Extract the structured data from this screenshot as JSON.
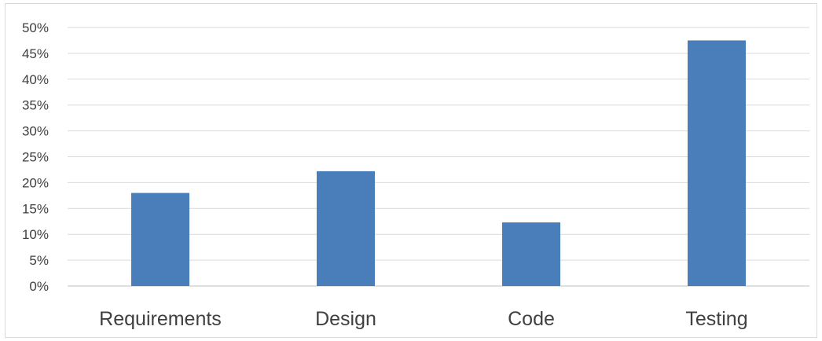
{
  "chart_data": {
    "type": "bar",
    "categories": [
      "Requirements",
      "Design",
      "Code",
      "Testing"
    ],
    "values": [
      18,
      22.2,
      12.3,
      47.5
    ],
    "value_format": "percent",
    "y_ticks": [
      "0%",
      "5%",
      "10%",
      "15%",
      "20%",
      "25%",
      "30%",
      "35%",
      "40%",
      "45%",
      "50%"
    ],
    "ylim": [
      0,
      50
    ],
    "grid": true,
    "legend": "none",
    "bar_color": "#4a7ebb",
    "title": "",
    "xlabel": "",
    "ylabel": ""
  }
}
